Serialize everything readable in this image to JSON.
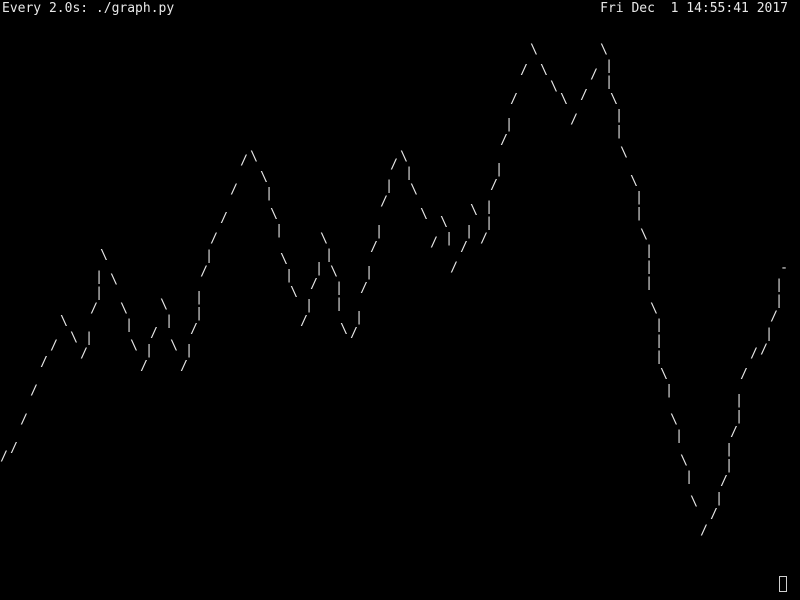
{
  "header": {
    "command": "Every 2.0s: ./graph.py",
    "datetime": "Fri Dec  1 14:55:41 2017"
  },
  "terminal": {
    "background": "#000000",
    "foreground": "#e8e8e8",
    "cursor_icon": "block-cursor-icon"
  },
  "chart_data": {
    "type": "line",
    "title": "",
    "xlabel": "",
    "ylabel": "",
    "grid": false,
    "legend": "none",
    "series": [
      {
        "values": [
          3.9,
          4.1,
          4.8,
          5.5,
          6.2,
          6.6,
          7.2,
          6.8,
          6.4,
          7.5,
          8.8,
          8.2,
          7.5,
          6.6,
          6.1,
          6.9,
          7.6,
          6.6,
          6.1,
          7.0,
          8.4,
          9.2,
          9.7,
          10.4,
          11.1,
          11.2,
          10.7,
          9.8,
          8.7,
          7.9,
          7.2,
          8.1,
          9.2,
          8.4,
          7.0,
          6.9,
          8.0,
          9.0,
          10.1,
          11.0,
          11.2,
          10.4,
          9.8,
          9.1,
          9.6,
          8.5,
          9.0,
          9.9,
          9.2,
          10.5,
          11.6,
          12.6,
          13.3,
          13.8,
          13.3,
          12.9,
          12.6,
          12.1,
          12.7,
          13.2,
          13.8,
          12.6,
          11.3,
          10.6,
          9.3,
          7.5,
          5.9,
          4.8,
          3.8,
          2.8,
          2.1,
          2.5,
          3.3,
          4.5,
          5.9,
          6.4,
          6.5,
          7.3,
          8.5
        ]
      }
    ]
  }
}
